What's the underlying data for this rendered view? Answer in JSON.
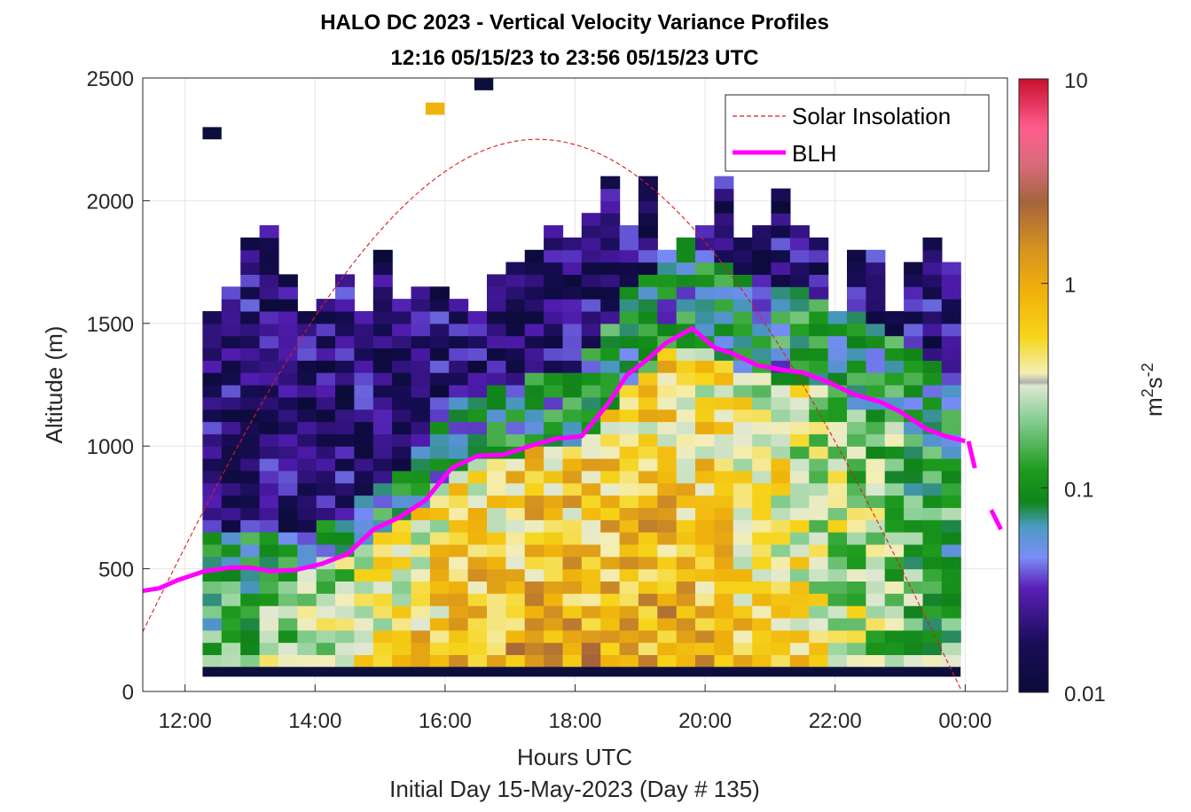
{
  "chart_data": {
    "type": "heatmap",
    "title_line1": "HALO DC 2023 - Vertical Velocity Variance Profiles",
    "title_line2": "12:16 05/15/23 to 23:56 05/15/23  UTC",
    "xlabel": "Hours UTC",
    "ylabel": "Altitude (m)",
    "footer": "Initial Day 15-May-2023 (Day # 135)",
    "x_range_hours": [
      11.35,
      24.65
    ],
    "y_range_m": [
      0,
      2500
    ],
    "x_ticks": [
      {
        "value": 12,
        "label": "12:00"
      },
      {
        "value": 14,
        "label": "14:00"
      },
      {
        "value": 16,
        "label": "16:00"
      },
      {
        "value": 18,
        "label": "18:00"
      },
      {
        "value": 20,
        "label": "20:00"
      },
      {
        "value": 22,
        "label": "22:00"
      },
      {
        "value": 24,
        "label": "00:00"
      }
    ],
    "y_ticks": [
      {
        "value": 0,
        "label": "0"
      },
      {
        "value": 500,
        "label": "500"
      },
      {
        "value": 1000,
        "label": "1000"
      },
      {
        "value": 1500,
        "label": "1500"
      },
      {
        "value": 2000,
        "label": "2000"
      },
      {
        "value": 2500,
        "label": "2500"
      }
    ],
    "grid": true,
    "colorbar": {
      "label_base": "m",
      "label_sup1": "2",
      "label_mid": "s",
      "label_sup2": "-2",
      "scale": "log",
      "range": [
        0.01,
        10
      ],
      "ticks": [
        {
          "value": 0.01,
          "label": "0.01"
        },
        {
          "value": 0.1,
          "label": "0.1"
        },
        {
          "value": 1,
          "label": "1"
        },
        {
          "value": 10,
          "label": "10"
        }
      ]
    },
    "legend": {
      "position": "top-right",
      "entries": [
        {
          "name": "Solar Insolation",
          "style": "dashed",
          "color": "#e01b1b"
        },
        {
          "name": "BLH",
          "style": "solid",
          "color": "#ff00ff"
        }
      ]
    },
    "heatmap": {
      "time_start_hours": 12.27,
      "time_end_hours": 23.93,
      "cols": 40,
      "alt_start_m": 100,
      "alt_step_m": 50,
      "rows": 40,
      "surface_band_value": 0.01
    },
    "blh": {
      "x": [
        11.35,
        11.6,
        11.9,
        12.3,
        12.7,
        13.0,
        13.3,
        13.7,
        14.1,
        14.5,
        14.9,
        15.3,
        15.7,
        16.1,
        16.5,
        16.9,
        17.3,
        17.7,
        18.1,
        18.5,
        18.8,
        19.1,
        19.4,
        19.8,
        20.15,
        20.4,
        20.8,
        21.2,
        21.5,
        21.9,
        22.3,
        22.7,
        23.0,
        23.4,
        23.7,
        24.0
      ],
      "y": [
        410,
        420,
        455,
        490,
        505,
        505,
        490,
        495,
        520,
        560,
        660,
        710,
        780,
        910,
        960,
        965,
        1000,
        1030,
        1040,
        1170,
        1290,
        1350,
        1420,
        1480,
        1400,
        1380,
        1330,
        1310,
        1300,
        1260,
        1210,
        1180,
        1140,
        1070,
        1040,
        1020
      ],
      "x_tail": [
        24.05,
        24.15
      ],
      "y_tail": [
        1020,
        910
      ],
      "x_tail2": [
        24.4,
        24.55
      ],
      "y_tail2": [
        740,
        660
      ]
    },
    "solar": {
      "peak_hour": 17.07,
      "peak_m": 2250,
      "zero_hour_start": 10.9,
      "zero_hour_end": 23.95
    },
    "annotation_fills": {
      "surface": "#0c0e3c",
      "accent": "#f0b30e"
    }
  }
}
